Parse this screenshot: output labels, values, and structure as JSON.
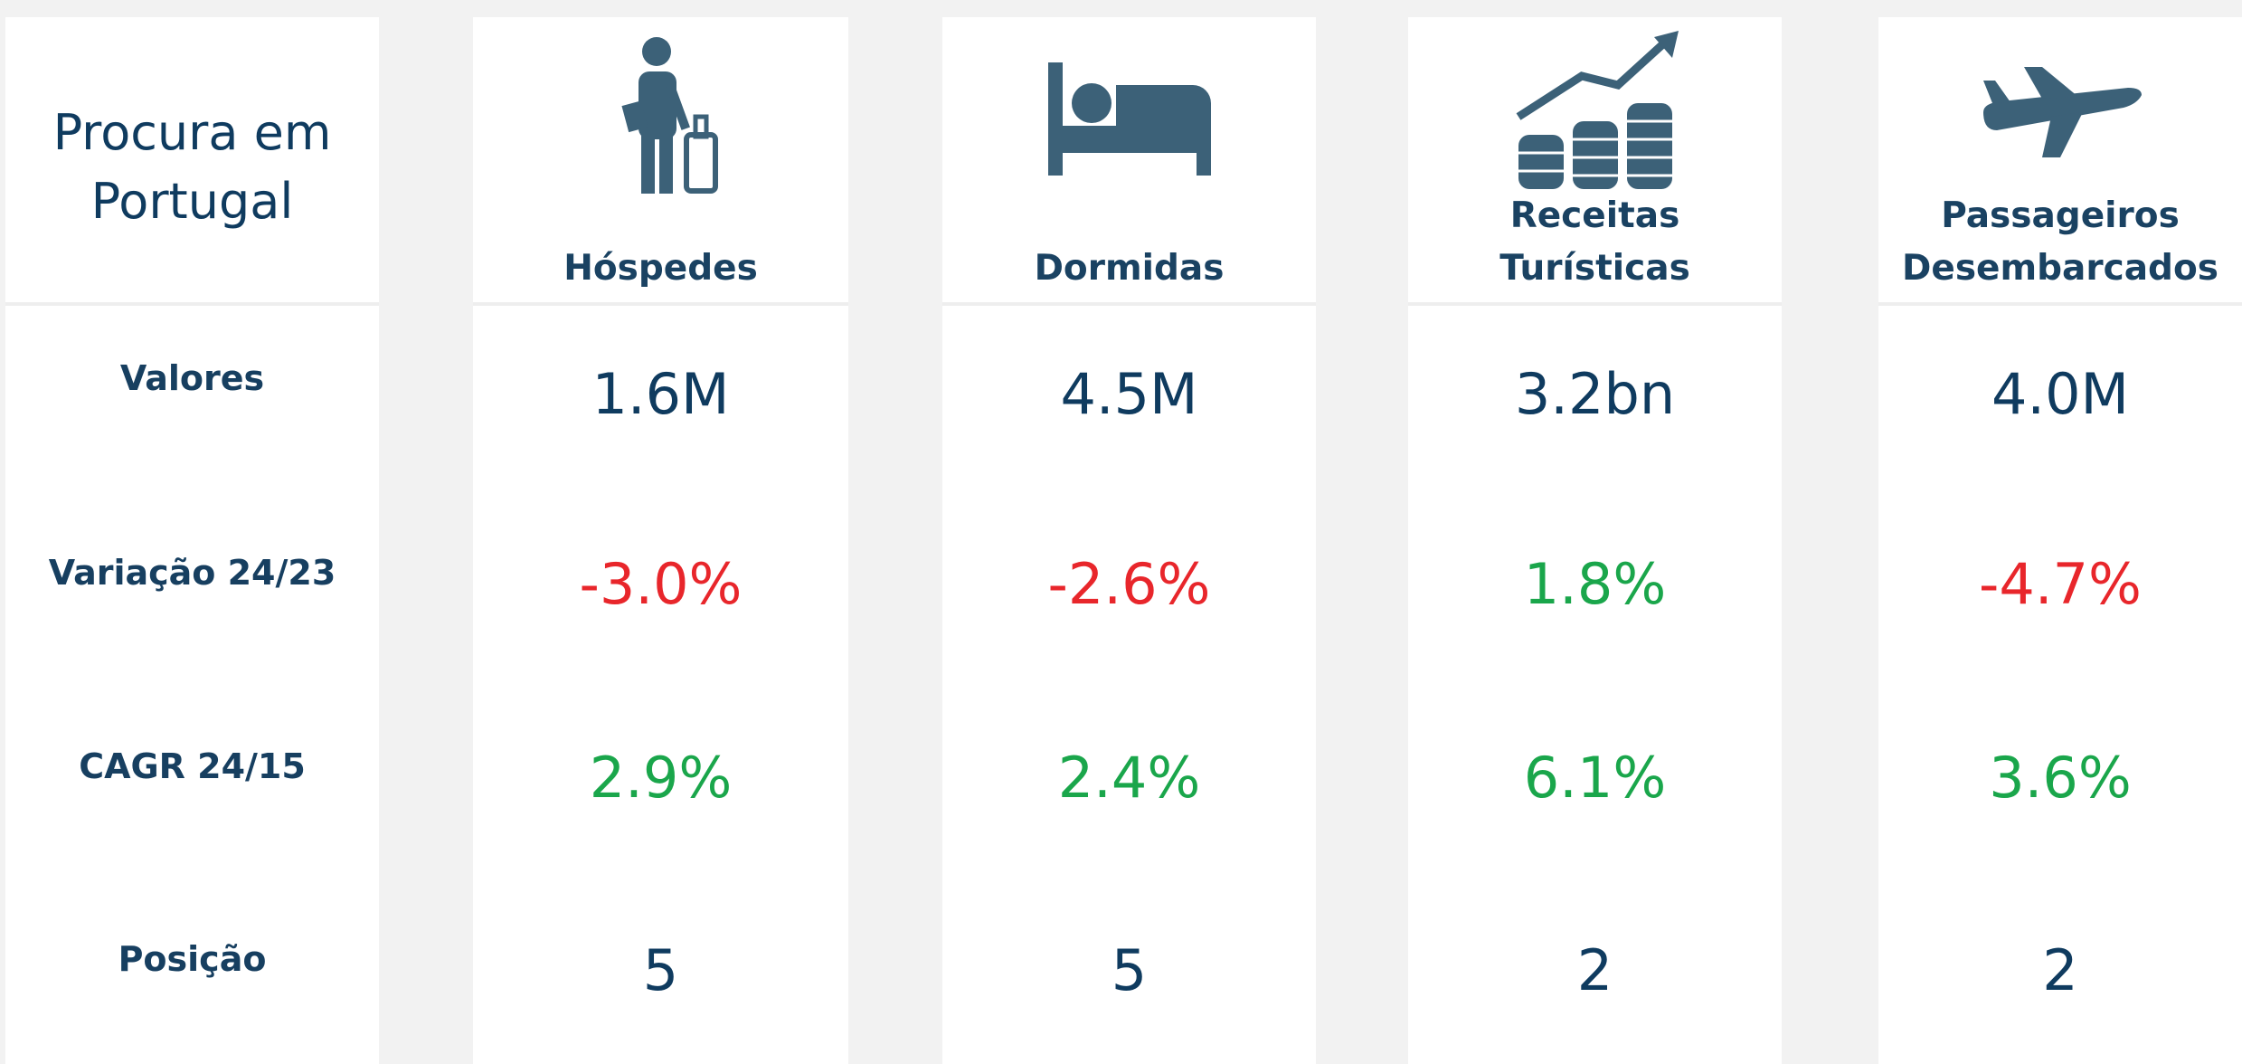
{
  "header": {
    "title": "Procura em Portugal"
  },
  "row_labels": [
    "Valores",
    "Variação 24/23",
    "CAGR 24/15",
    "Posição"
  ],
  "columns": [
    {
      "label": "Hóspedes",
      "values": [
        "1.6M",
        "-3.0%",
        "2.9%",
        "5"
      ]
    },
    {
      "label": "Dormidas",
      "values": [
        "4.5M",
        "-2.6%",
        "2.4%",
        "5"
      ]
    },
    {
      "label": "Receitas Turísticas",
      "values": [
        "3.2bn",
        "1.8%",
        "6.1%",
        "2"
      ]
    },
    {
      "label": "Passageiros Desembarcados",
      "values": [
        "4.0M",
        "-4.7%",
        "3.6%",
        "2"
      ]
    }
  ]
}
